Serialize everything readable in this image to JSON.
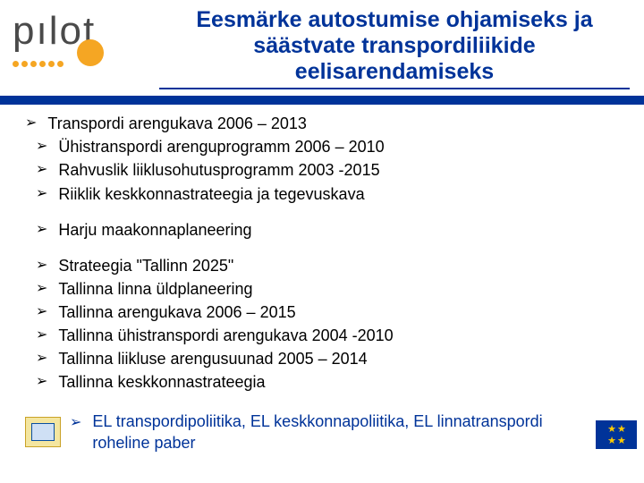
{
  "colors": {
    "brand_blue": "#003399",
    "accent_orange": "#f5a623",
    "text_black": "#000000",
    "eu_gold": "#ffcc00",
    "bg": "#ffffff"
  },
  "logo": {
    "text": "pılot"
  },
  "title": {
    "line1": "Eesmärke autostumise ohjamiseks ja",
    "line2": "säästvate transpordiliikide",
    "line3": "eelisarendamiseks"
  },
  "group1": [
    "Transpordi arengukava 2006 – 2013",
    "Ühistranspordi arenguprogramm 2006 – 2010",
    "Rahvuslik liiklusohutusprogramm 2003 -2015",
    "Riiklik keskkonnastrateegia ja tegevuskava"
  ],
  "group2": [
    "Harju maakonnaplaneering"
  ],
  "group3": [
    "Strateegia \"Tallinn 2025\"",
    "Tallinna linna üldplaneering",
    "Tallinna arengukava 2006 – 2015",
    "Tallinna ühistranspordi arengukava 2004 -2010",
    "Tallinna liikluse arengusuunad 2005 – 2014",
    "Tallinna keskkonnastrateegia"
  ],
  "footer": {
    "line1": " EL transpordipoliitika, EL keskkonnapoliitika, EL linnatranspordi",
    "line2": "roheline paber"
  },
  "bullet_glyph": "➢"
}
